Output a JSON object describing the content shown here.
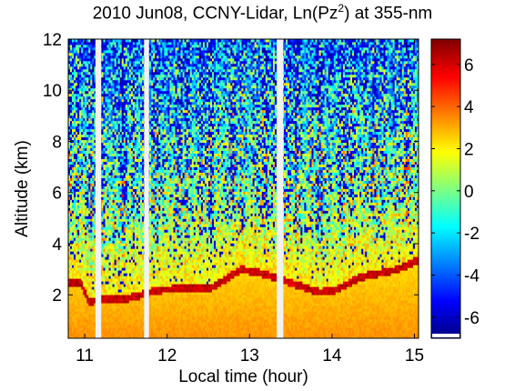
{
  "title": {
    "prefix": "2010 Jun08, CCNY-Lidar, Ln(Pz",
    "superscript": "2",
    "suffix": ") at 355-nm"
  },
  "chart_data": {
    "type": "heatmap",
    "title": "2010 Jun08, CCNY-Lidar, Ln(Pz2) at 355-nm",
    "xlabel": "Local time (hour)",
    "ylabel": "Altitude (km)",
    "xlim": [
      10.8,
      15.05
    ],
    "ylim": [
      0.3,
      12
    ],
    "x_ticks": [
      11,
      12,
      13,
      14,
      15
    ],
    "y_ticks": [
      2,
      4,
      6,
      8,
      10,
      12
    ],
    "colorbar": {
      "colormap": "jet",
      "range": [
        -7,
        7.2
      ],
      "ticks": [
        6,
        4,
        2,
        0,
        -2,
        -4,
        -6
      ]
    },
    "data_gaps_hour": [
      [
        11.13,
        11.2
      ],
      [
        11.72,
        11.78
      ],
      [
        13.33,
        13.41
      ]
    ],
    "cloud_base_km": [
      {
        "time": 10.95,
        "altitude": 2.5
      },
      {
        "time": 11.05,
        "altitude": 1.75
      },
      {
        "time": 11.25,
        "altitude": 1.85
      },
      {
        "time": 11.45,
        "altitude": 1.8
      },
      {
        "time": 11.9,
        "altitude": 2.2
      },
      {
        "time": 12.55,
        "altitude": 2.3
      },
      {
        "time": 12.8,
        "altitude": 2.8
      },
      {
        "time": 12.9,
        "altitude": 3.0
      },
      {
        "time": 13.15,
        "altitude": 2.85
      },
      {
        "time": 13.85,
        "altitude": 2.1
      },
      {
        "time": 14.05,
        "altitude": 2.2
      },
      {
        "time": 14.35,
        "altitude": 2.7
      },
      {
        "time": 14.8,
        "altitude": 3.0
      },
      {
        "time": 15.0,
        "altitude": 3.3
      }
    ]
  }
}
